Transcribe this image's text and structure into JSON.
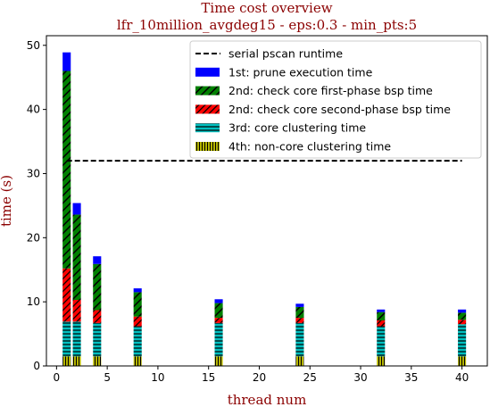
{
  "chart_data": {
    "type": "bar",
    "stacked": true,
    "title": "Time cost overview",
    "subtitle": "lfr_10million_avgdeg15 - eps:0.3 - min_pts:5",
    "xlabel": "thread num",
    "ylabel": "time (s)",
    "xlim": [
      -1,
      42.5
    ],
    "ylim": [
      0,
      51.5
    ],
    "xticks": [
      0,
      5,
      10,
      15,
      20,
      25,
      30,
      35,
      40
    ],
    "yticks": [
      0,
      10,
      20,
      30,
      40,
      50
    ],
    "x": [
      1,
      2,
      4,
      8,
      16,
      24,
      32,
      40
    ],
    "series": [
      {
        "name": "4th: non-core clustering time",
        "color": "#c8c800",
        "values": [
          1.5,
          1.5,
          1.5,
          1.5,
          1.5,
          1.5,
          1.5,
          1.5
        ]
      },
      {
        "name": "3rd: core clustering time",
        "color": "#00bfbf",
        "values": [
          5.4,
          5.4,
          5.2,
          4.7,
          5.2,
          5.2,
          4.7,
          5.0
        ]
      },
      {
        "name": "2nd: check core second-phase bsp time",
        "color": "#ff0000",
        "values": [
          8.3,
          3.4,
          2.0,
          1.5,
          0.8,
          0.8,
          0.9,
          0.7
        ]
      },
      {
        "name": "2nd: check core first-phase bsp time",
        "color": "#008000",
        "values": [
          30.8,
          13.3,
          7.2,
          3.8,
          2.3,
          1.7,
          1.3,
          1.1
        ]
      },
      {
        "name": "1st: prune execution time",
        "color": "#0000ff",
        "values": [
          2.9,
          1.8,
          1.2,
          0.6,
          0.6,
          0.5,
          0.4,
          0.5
        ]
      }
    ],
    "reference_line": {
      "name": "serial pscan runtime",
      "y": 32.0,
      "x_range": [
        1,
        40
      ],
      "color": "#000000",
      "style": "dashed"
    },
    "legend_position": "top-right",
    "grid": false
  }
}
